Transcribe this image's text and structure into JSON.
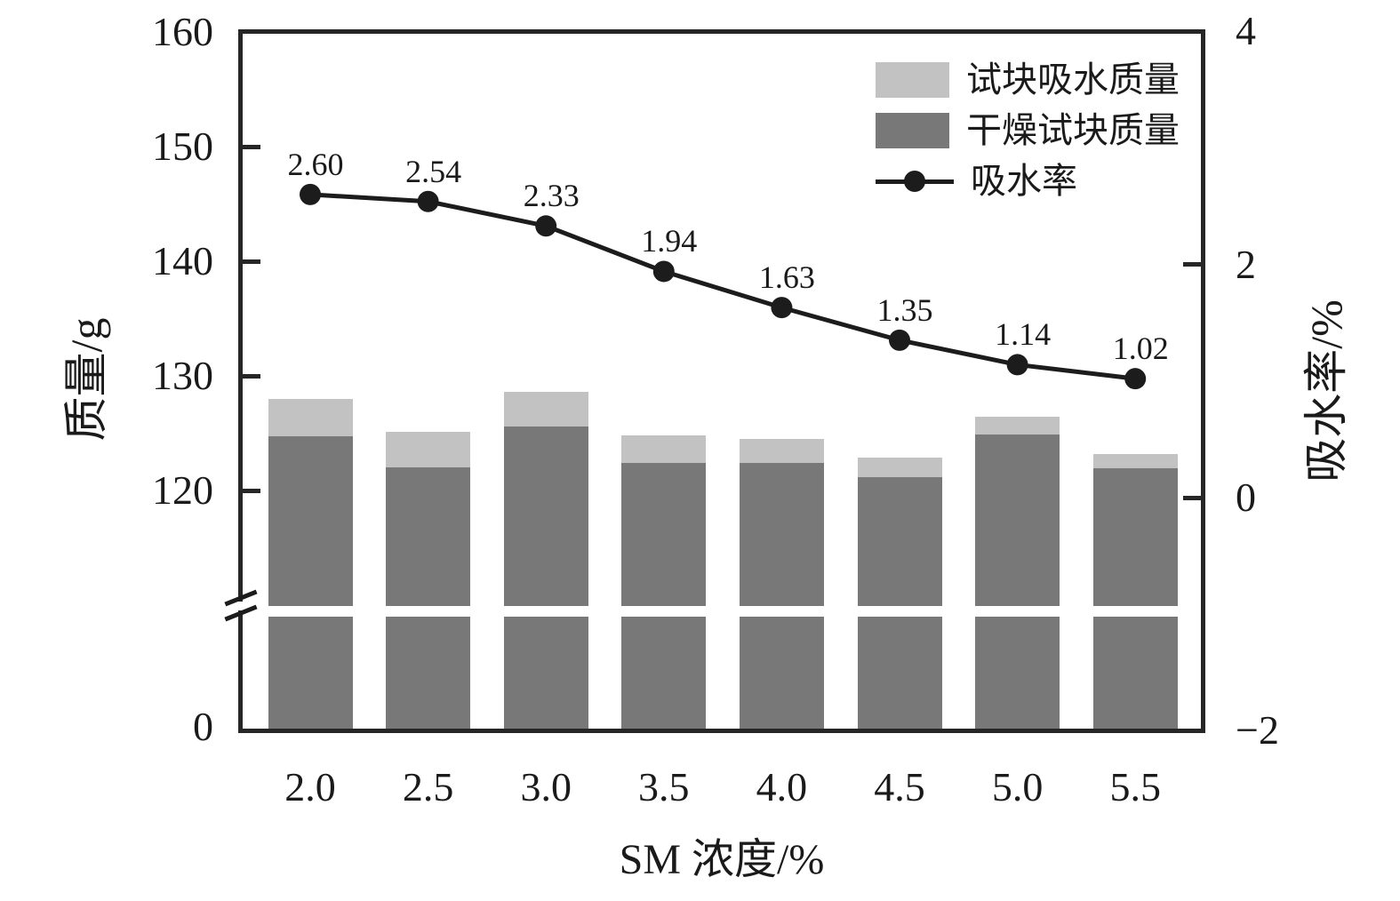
{
  "chart_data": {
    "type": "bar",
    "combo": "stacked bars (left mass axis, broken) + line with markers (right rate axis)",
    "categories": [
      "2.0",
      "2.5",
      "3.0",
      "3.5",
      "4.0",
      "4.5",
      "5.0",
      "5.5"
    ],
    "xlabel": "SM 浓度/%",
    "ylabel_left": "质量/g",
    "ylabel_right": "吸水率/%",
    "yticks_left": {
      "labels": [
        "160",
        "150",
        "140",
        "130",
        "120",
        "0"
      ],
      "values": [
        160,
        150,
        140,
        130,
        120,
        0
      ]
    },
    "yticks_right": {
      "labels": [
        "4",
        "2",
        "0",
        "−2"
      ],
      "values": [
        4,
        2,
        0,
        -2
      ]
    },
    "ylim_left": [
      0,
      160
    ],
    "ylim_right": [
      -2,
      4
    ],
    "axis_break_left": "broken axis between 0 and ~115; bars continue below the break band",
    "grid": false,
    "legend_position": "top-right inside plot",
    "legend": [
      "试块吸水质量",
      "干燥试块质量",
      "吸水率"
    ],
    "series": [
      {
        "name": "干燥试块质量",
        "type": "bar",
        "role": "dry-block-mass",
        "color": "#787878",
        "values": [
          124.7,
          122.0,
          125.6,
          122.4,
          122.4,
          121.2,
          124.9,
          121.9
        ]
      },
      {
        "name": "试块吸水质量",
        "type": "bar",
        "role": "absorbed-water-mass-cap",
        "color": "#c2c2c2",
        "values": [
          3.3,
          3.1,
          3.0,
          2.4,
          2.1,
          1.7,
          1.5,
          1.3
        ],
        "stacked_total": [
          128.0,
          125.1,
          128.6,
          124.8,
          124.5,
          122.9,
          126.4,
          123.2
        ]
      },
      {
        "name": "吸水率",
        "type": "line",
        "axis": "right",
        "color": "#1c1c1c",
        "values": [
          2.6,
          2.54,
          2.33,
          1.94,
          1.63,
          1.35,
          1.14,
          1.02
        ],
        "point_labels": [
          "2.60",
          "2.54",
          "2.33",
          "1.94",
          "1.63",
          "1.35",
          "1.14",
          "1.02"
        ]
      }
    ],
    "colors": {
      "axis": "#262626",
      "text": "#1a1a1a",
      "background": "#ffffff"
    }
  }
}
